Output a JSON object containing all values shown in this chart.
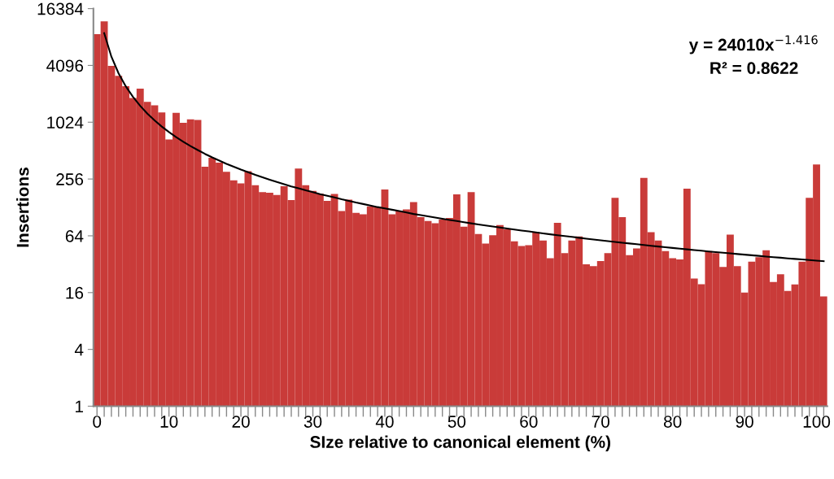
{
  "chart_data": {
    "type": "bar",
    "xlabel": "SIze relative to canonical element (%)",
    "ylabel": "Insertions",
    "categories": [
      "0",
      null,
      null,
      null,
      null,
      null,
      null,
      null,
      null,
      null,
      "10",
      null,
      null,
      null,
      null,
      null,
      null,
      null,
      null,
      null,
      "20",
      null,
      null,
      null,
      null,
      null,
      null,
      null,
      null,
      null,
      "30",
      null,
      null,
      null,
      null,
      null,
      null,
      null,
      null,
      null,
      "40",
      null,
      null,
      null,
      null,
      null,
      null,
      null,
      null,
      null,
      "50",
      null,
      null,
      null,
      null,
      null,
      null,
      null,
      null,
      null,
      "60",
      null,
      null,
      null,
      null,
      null,
      null,
      null,
      null,
      null,
      "70",
      null,
      null,
      null,
      null,
      null,
      null,
      null,
      null,
      null,
      "80",
      null,
      null,
      null,
      null,
      null,
      null,
      null,
      null,
      null,
      "90",
      null,
      null,
      null,
      null,
      null,
      null,
      null,
      null,
      null,
      "100",
      null
    ],
    "series": [
      {
        "color": "#c93b39",
        "values": [
          8800,
          12000,
          4050,
          3170,
          2470,
          1845,
          2320,
          1680,
          1550,
          1300,
          672,
          1290,
          1010,
          1100,
          1080,
          345,
          430,
          382,
          306,
          248,
          230,
          310,
          220,
          186,
          183,
          173,
          215,
          153,
          330,
          220,
          191,
          179,
          150,
          178,
          117,
          155,
          112,
          108,
          131,
          129,
          198,
          108,
          117,
          122,
          146,
          101,
          92,
          87,
          95,
          99,
          176,
          80,
          186,
          67,
          53,
          65,
          83,
          75,
          56,
          50,
          51,
          70,
          57,
          37,
          88,
          42,
          57,
          63,
          32,
          30.5,
          34.5,
          42,
          162,
          101,
          40,
          47,
          263,
          70,
          57,
          44,
          37,
          36,
          202,
          22.5,
          19.6,
          44,
          42,
          30,
          66,
          30.5,
          16,
          34,
          38,
          45,
          20.7,
          25,
          16.7,
          19.5,
          34,
          162,
          365,
          14.6
        ]
      },
      {
        "type": "line",
        "color": "#000000",
        "values": [
          null,
          8997,
          5069,
          3371,
          2458,
          1899,
          1527,
          1264,
          1070,
          921,
          805,
          712,
          636,
          572,
          519,
          473,
          434,
          401,
          371,
          345,
          322,
          302,
          283,
          267,
          252,
          238,
          226,
          214,
          204,
          194,
          186,
          177,
          170,
          163,
          156,
          150,
          144,
          139,
          134,
          129,
          125,
          121,
          117,
          113,
          109,
          106,
          103,
          99.9,
          97.0,
          94.3,
          91.7,
          89.2,
          86.8,
          84.5,
          82.4,
          80.3,
          78.3,
          76.4,
          74.6,
          72.8,
          71.2,
          69.5,
          67.9,
          66.4,
          65.0,
          63.6,
          62.3,
          61.0,
          59.7,
          58.5,
          57.4,
          56.2,
          55.1,
          54.1,
          53.1,
          52.1,
          51.1,
          50.2,
          49.3,
          48.5,
          47.6,
          46.8,
          46.0,
          45.2,
          44.5,
          43.7,
          43.0,
          42.3,
          41.7,
          41.0,
          40.4,
          39.8,
          39.2,
          38.6,
          38.0,
          37.5,
          36.9,
          36.4,
          35.9,
          35.4,
          34.9,
          34.4
        ]
      }
    ],
    "log": "y",
    "ylim": [
      1,
      16384
    ],
    "yticks": [
      1,
      4,
      16,
      64,
      256,
      1024,
      4096,
      16384
    ],
    "annotations": [
      {
        "text": "y = 24010x$^{−1.416}$\nR² = 0.8622"
      }
    ]
  }
}
